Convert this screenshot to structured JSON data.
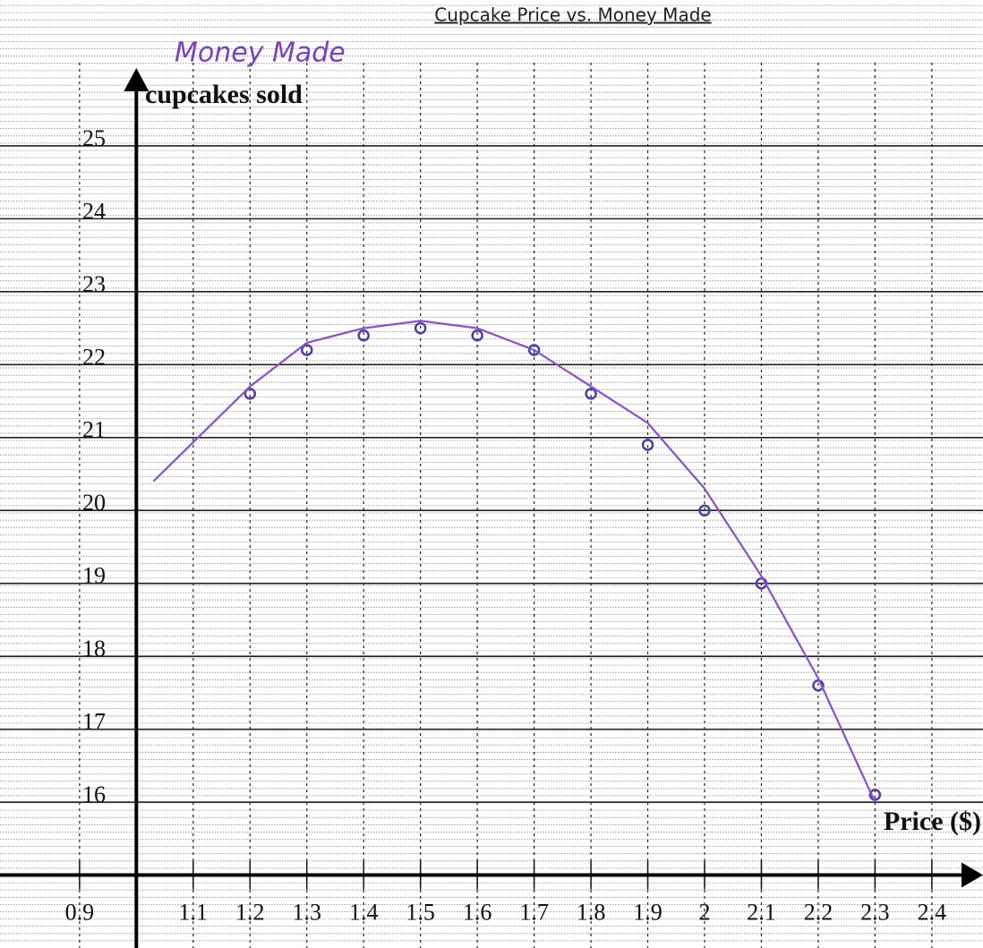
{
  "chart_data": {
    "type": "scatter",
    "title": "Cupcake Price vs. Money Made",
    "annotation": "Money Made",
    "y_label": "cupcakes sold",
    "x_label": "Price ($)",
    "xlim": [
      0.76,
      2.49
    ],
    "ylim": [
      14,
      27
    ],
    "xticks": [
      0.9,
      1.1,
      1.2,
      1.3,
      1.4,
      1.5,
      1.6,
      1.7,
      1.8,
      1.9,
      2,
      2.1,
      2.2,
      2.3,
      2.4
    ],
    "yticks": [
      16,
      17,
      18,
      19,
      20,
      21,
      22,
      23,
      24,
      25
    ],
    "grid": true,
    "series": [
      {
        "color": "#4a3fb0",
        "mode": "markers",
        "x": [
          1.2,
          1.3,
          1.4,
          1.5,
          1.6,
          1.7,
          1.8,
          1.9,
          2.0,
          2.1,
          2.2,
          2.3
        ],
        "values": [
          21.6,
          22.2,
          22.4,
          22.5,
          22.4,
          22.2,
          21.6,
          20.9,
          20.0,
          19.0,
          17.6,
          16.1
        ]
      },
      {
        "color": "#8a4fd0",
        "mode": "line",
        "x": [
          1.03,
          1.2,
          1.3,
          1.4,
          1.5,
          1.6,
          1.7,
          1.8,
          1.9,
          2.0,
          2.1,
          2.2,
          2.3
        ],
        "values": [
          20.4,
          21.7,
          22.3,
          22.5,
          22.6,
          22.5,
          22.2,
          21.7,
          21.2,
          20.3,
          19.1,
          17.7,
          16.0
        ]
      }
    ]
  }
}
